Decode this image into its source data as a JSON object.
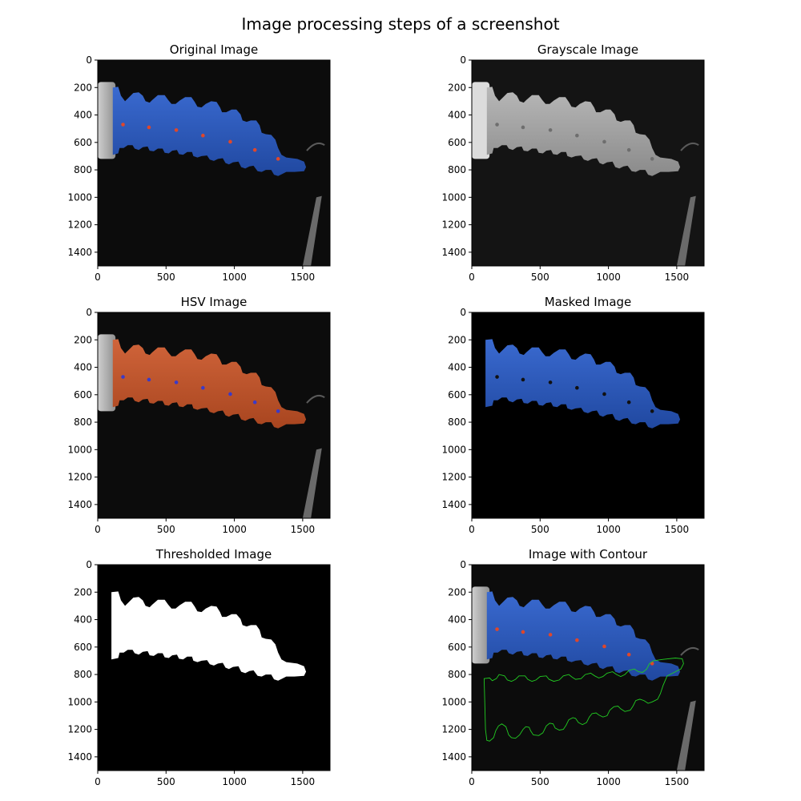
{
  "figure": {
    "title": "Image processing steps of a screenshot"
  },
  "panels": [
    {
      "title": "Original Image",
      "kind": "original"
    },
    {
      "title": "Grayscale Image",
      "kind": "gray"
    },
    {
      "title": "HSV Image",
      "kind": "hsv"
    },
    {
      "title": "Masked Image",
      "kind": "masked"
    },
    {
      "title": "Thresholded Image",
      "kind": "threshold"
    },
    {
      "title": "Image with Contour",
      "kind": "contour"
    }
  ],
  "axes": {
    "x_ticks": [
      "0",
      "500",
      "1000",
      "1500"
    ],
    "x_tick_values": [
      0,
      500,
      1000,
      1500
    ],
    "y_ticks": [
      "0",
      "200",
      "400",
      "600",
      "800",
      "1000",
      "1200",
      "1400"
    ],
    "y_tick_values": [
      0,
      200,
      400,
      600,
      800,
      1000,
      1200,
      1400
    ],
    "x_range": [
      0,
      1700
    ],
    "y_range": [
      0,
      1500
    ]
  },
  "marker_points": [
    [
      185,
      470
    ],
    [
      375,
      490
    ],
    [
      575,
      510
    ],
    [
      770,
      550
    ],
    [
      970,
      595
    ],
    [
      1150,
      655
    ],
    [
      1320,
      720
    ]
  ],
  "colors": {
    "background_dark": "#0c0c0c",
    "object_blue": "#2d5ab4",
    "object_orange": "#c5582d",
    "marker_red": "#e0472a",
    "marker_blue": "#3a3ac8",
    "gray_object": "#a8a8a8",
    "contour_green": "#22cc22"
  }
}
